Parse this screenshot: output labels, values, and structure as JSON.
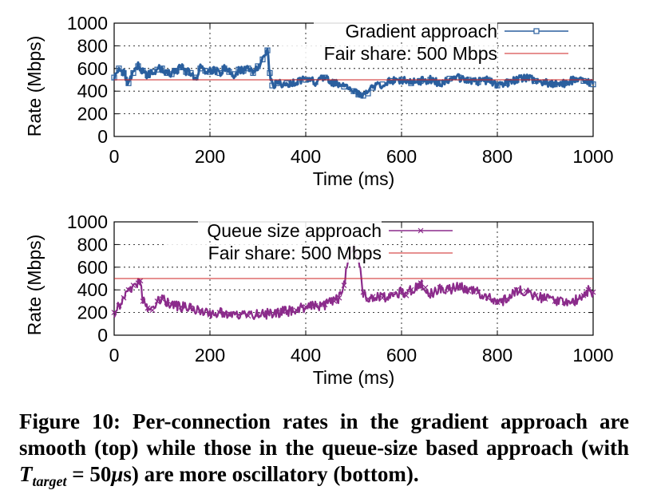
{
  "chart_data": [
    {
      "type": "line",
      "xlabel": "Time (ms)",
      "ylabel": "Rate (Mbps)",
      "xlim": [
        0,
        1000
      ],
      "ylim": [
        0,
        1000
      ],
      "xticks": [
        "0",
        "200",
        "400",
        "600",
        "800",
        "1000"
      ],
      "yticks": [
        "0",
        "200",
        "400",
        "600",
        "800",
        "1000"
      ],
      "grid": true,
      "legend_position": "top-right",
      "series": [
        {
          "name": "Gradient approach",
          "color": "#2a5f9e",
          "marker": "square",
          "x": [
            0,
            10,
            20,
            30,
            40,
            50,
            60,
            70,
            80,
            90,
            100,
            110,
            120,
            130,
            140,
            150,
            160,
            170,
            180,
            190,
            200,
            210,
            220,
            230,
            240,
            250,
            260,
            270,
            280,
            290,
            300,
            310,
            320,
            325,
            330,
            340,
            360,
            380,
            400,
            420,
            440,
            460,
            480,
            500,
            510,
            520,
            530,
            540,
            560,
            580,
            600,
            620,
            640,
            660,
            680,
            700,
            720,
            740,
            760,
            780,
            800,
            820,
            840,
            860,
            880,
            900,
            920,
            940,
            960,
            980,
            1000
          ],
          "values": [
            520,
            600,
            560,
            470,
            560,
            620,
            580,
            540,
            570,
            590,
            600,
            560,
            550,
            580,
            610,
            570,
            560,
            520,
            600,
            580,
            570,
            590,
            560,
            600,
            570,
            550,
            590,
            580,
            600,
            560,
            620,
            680,
            760,
            560,
            450,
            470,
            470,
            480,
            500,
            480,
            520,
            470,
            440,
            400,
            370,
            360,
            380,
            430,
            460,
            490,
            500,
            470,
            490,
            500,
            470,
            510,
            520,
            500,
            480,
            500,
            450,
            470,
            500,
            520,
            490,
            480,
            460,
            470,
            500,
            490,
            460
          ]
        },
        {
          "name": "Fair share: 500 Mbps",
          "color": "#cc2222",
          "x": [
            0,
            1000
          ],
          "values": [
            500,
            500
          ]
        }
      ]
    },
    {
      "type": "line",
      "xlabel": "Time (ms)",
      "ylabel": "Rate (Mbps)",
      "xlim": [
        0,
        1000
      ],
      "ylim": [
        0,
        1000
      ],
      "xticks": [
        "0",
        "200",
        "400",
        "600",
        "800",
        "1000"
      ],
      "yticks": [
        "0",
        "200",
        "400",
        "600",
        "800",
        "1000"
      ],
      "grid": true,
      "legend_position": "top-center",
      "series": [
        {
          "name": "Queue size approach",
          "color": "#8b2b8b",
          "marker": "x",
          "x": [
            0,
            10,
            20,
            30,
            40,
            50,
            55,
            60,
            70,
            80,
            90,
            100,
            110,
            120,
            140,
            160,
            180,
            200,
            220,
            240,
            260,
            280,
            300,
            320,
            340,
            360,
            380,
            400,
            420,
            440,
            460,
            470,
            480,
            490,
            500,
            510,
            520,
            530,
            540,
            560,
            580,
            600,
            610,
            620,
            640,
            650,
            660,
            680,
            700,
            720,
            740,
            760,
            780,
            800,
            820,
            840,
            860,
            880,
            900,
            920,
            940,
            960,
            980,
            990,
            1000
          ],
          "values": [
            200,
            260,
            330,
            400,
            440,
            460,
            480,
            300,
            240,
            220,
            300,
            320,
            290,
            270,
            250,
            240,
            220,
            180,
            200,
            190,
            180,
            170,
            180,
            190,
            200,
            210,
            220,
            250,
            260,
            270,
            300,
            330,
            440,
            700,
            760,
            680,
            380,
            320,
            340,
            330,
            360,
            380,
            350,
            400,
            460,
            420,
            360,
            420,
            400,
            430,
            390,
            380,
            330,
            290,
            320,
            400,
            390,
            350,
            320,
            300,
            290,
            300,
            350,
            400,
            380
          ]
        },
        {
          "name": "Fair share: 500 Mbps",
          "color": "#cc2222",
          "x": [
            0,
            1000
          ],
          "values": [
            500,
            500
          ]
        }
      ]
    }
  ],
  "caption": {
    "prefix": "Figure 10: Per-connection rates in the gradient approach are smooth (top) while those in the queue-size based approach (with ",
    "math_T": "T",
    "math_sub": "target",
    "middle": " = 50",
    "mu": "μ",
    "suffix": "s) are more oscillatory (bottom)."
  }
}
